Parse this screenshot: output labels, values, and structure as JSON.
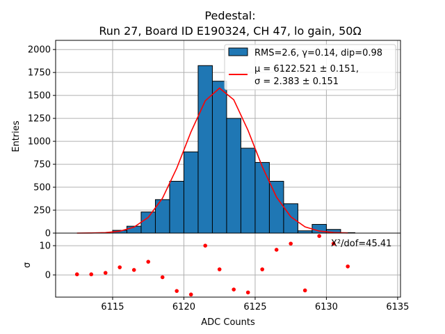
{
  "chart_data": [
    {
      "type": "bar",
      "title_line1": "Pedestal:",
      "title_line2": "Run 27, Board ID E190324, CH 47, lo gain, 50Ω",
      "xlabel": "",
      "ylabel": "Entries",
      "xlim": [
        6111.0,
        6135.2
      ],
      "ylim": [
        0,
        2100
      ],
      "yticks": [
        0,
        250,
        500,
        750,
        1000,
        1250,
        1500,
        1750,
        2000
      ],
      "ytick_labels": [
        "0",
        "250",
        "500",
        "750",
        "1000",
        "1250",
        "1500",
        "1750",
        "2000"
      ],
      "xticks": [
        6115,
        6120,
        6125,
        6130,
        6135
      ],
      "grid": true,
      "histogram": {
        "name": "RMS=2.6, γ=0.14, dip=0.98",
        "color": "#1f77b4",
        "bin_edges": [
          6115,
          6116,
          6117,
          6118,
          6119,
          6120,
          6121,
          6122,
          6123,
          6124,
          6125,
          6126,
          6127,
          6128,
          6129,
          6130,
          6131,
          6132
        ],
        "counts": [
          30,
          75,
          230,
          365,
          565,
          885,
          1825,
          1655,
          1250,
          925,
          770,
          565,
          320,
          25,
          95,
          40,
          5
        ]
      },
      "fit": {
        "name_line1": "μ = 6122.521 ± 0.151,",
        "name_line2": "σ = 2.383 ± 0.151",
        "color": "#ff0000",
        "mu": 6122.521,
        "sigma": 2.383,
        "amplitude": 9440,
        "x": [
          6112.5,
          6113.5,
          6114.5,
          6115.5,
          6116.5,
          6117.5,
          6118.5,
          6119.5,
          6120.5,
          6121.5,
          6122.5,
          6123.5,
          6124.5,
          6125.5,
          6126.5,
          6127.5,
          6128.5,
          6129.5,
          6130.5,
          6131.5
        ]
      },
      "legend_placement": "upper-right"
    },
    {
      "type": "scatter",
      "xlabel": "ADC Counts",
      "ylabel": "σ",
      "xlim": [
        6111.0,
        6135.2
      ],
      "ylim": [
        -7.6,
        14.3
      ],
      "yticks": [
        0,
        10
      ],
      "ytick_labels": [
        "0",
        "10"
      ],
      "xticks": [
        6115,
        6120,
        6125,
        6130,
        6135
      ],
      "xtick_labels": [
        "6115",
        "6120",
        "6125",
        "6130",
        "6135"
      ],
      "grid": true,
      "color": "#ff0000",
      "annotation": "Χ²/dof=45.41",
      "x": [
        6112.5,
        6113.5,
        6114.5,
        6115.5,
        6116.5,
        6117.5,
        6118.5,
        6119.5,
        6120.5,
        6121.5,
        6122.5,
        6123.5,
        6124.5,
        6125.5,
        6126.5,
        6127.5,
        6128.5,
        6129.5,
        6130.5,
        6131.5
      ],
      "y": [
        0.2,
        0.2,
        0.7,
        2.6,
        1.7,
        4.5,
        -0.8,
        -5.5,
        -6.7,
        10.0,
        1.9,
        -5.0,
        -6.0,
        1.9,
        8.6,
        10.7,
        -5.3,
        13.3,
        10.7,
        2.9
      ]
    }
  ]
}
